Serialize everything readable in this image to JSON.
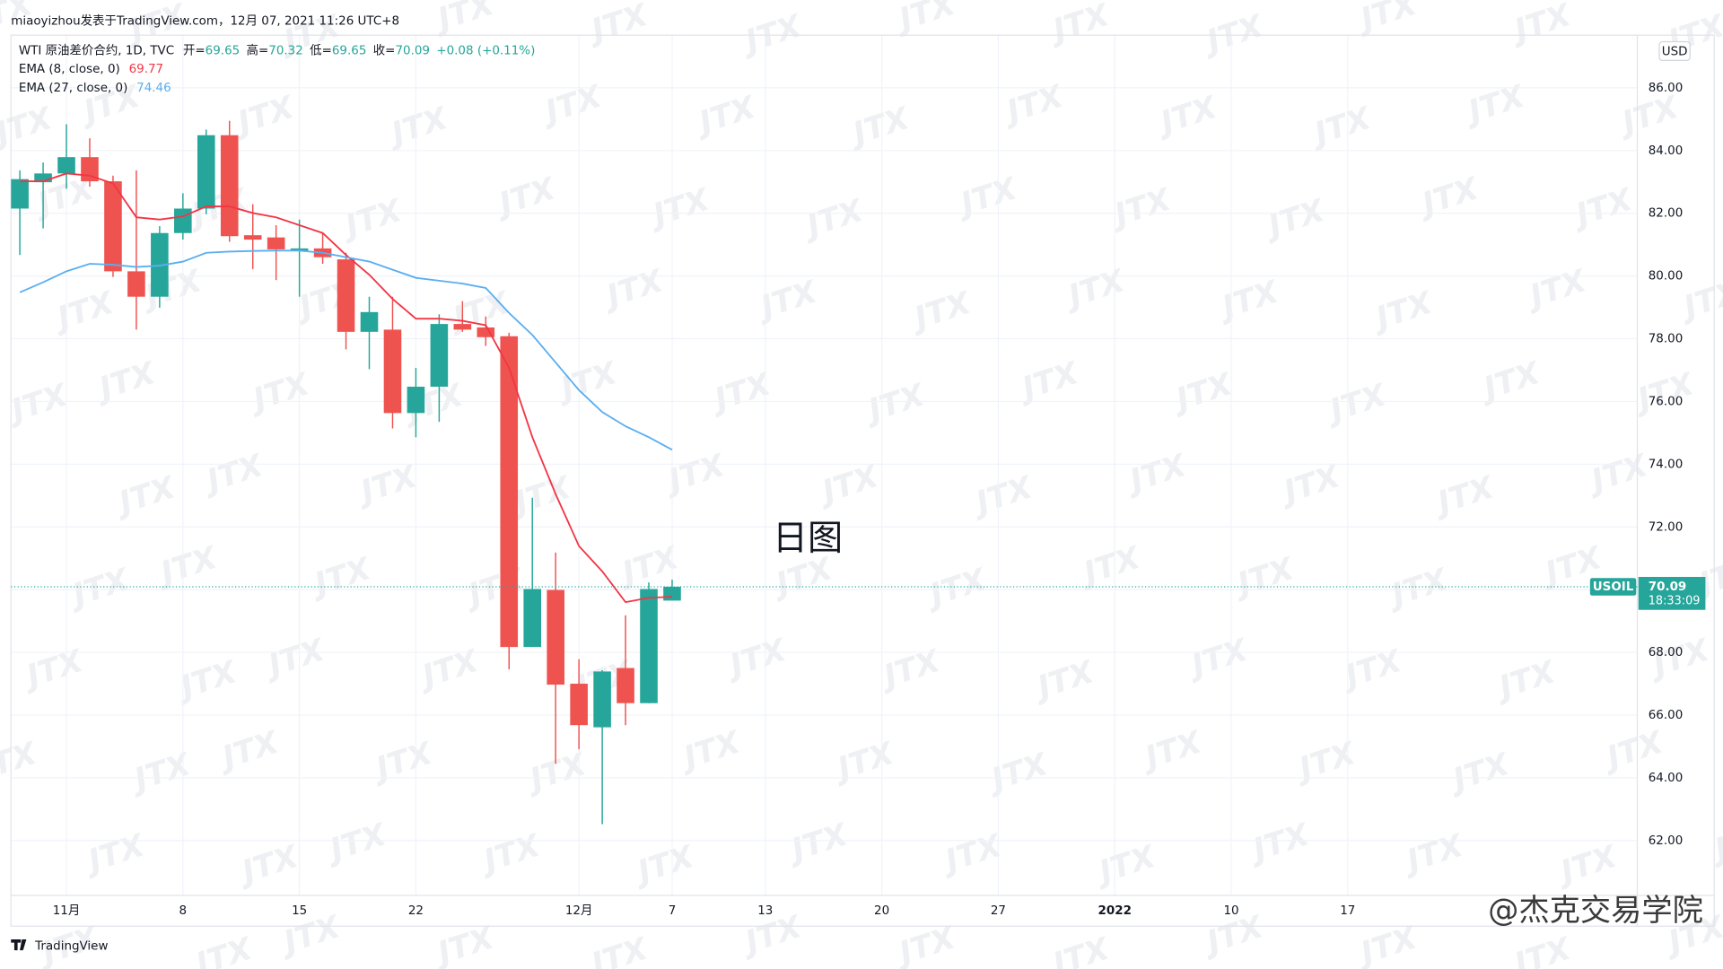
{
  "page_title": "miaoyizhou发表于TradingView.com，12月 07, 2021 11:26 UTC+8",
  "chart_data": {
    "type": "candlestick",
    "symbol_line": "WTI 原油差价合约, 1D, TVC",
    "ohlc_labels": [
      "开=",
      "高=",
      "低=",
      "收="
    ],
    "change": "+0.08 (+0.11%)",
    "currency": "USD",
    "ticker": "USOIL",
    "countdown": "18:33:09",
    "annotation": "日图",
    "watermark": "JTX",
    "credit": "@杰克交易学院",
    "brand": "TradingView",
    "up_color": "#26a69a",
    "down_color": "#ef5350",
    "open": [
      82.15,
      82.99,
      83.27,
      83.79,
      83.02,
      80.15,
      79.34,
      81.37,
      82.15,
      84.49,
      81.3,
      81.23,
      80.81,
      80.88,
      80.53,
      78.22,
      78.29,
      75.63,
      76.47,
      78.47,
      78.36,
      78.08,
      68.17,
      69.99,
      67.0,
      65.61,
      67.5,
      66.38,
      69.65
    ],
    "high": [
      83.37,
      83.62,
      84.84,
      84.39,
      83.2,
      83.37,
      81.59,
      82.64,
      84.67,
      84.95,
      82.29,
      81.62,
      81.8,
      81.37,
      80.74,
      79.34,
      79.34,
      77.07,
      78.78,
      79.2,
      78.71,
      78.19,
      72.93,
      71.18,
      67.78,
      67.43,
      69.18,
      70.23,
      70.32
    ],
    "low": [
      80.67,
      81.52,
      82.78,
      82.85,
      79.97,
      78.29,
      78.99,
      81.16,
      81.97,
      81.09,
      80.22,
      79.87,
      79.34,
      80.39,
      77.66,
      77.03,
      75.14,
      74.86,
      75.35,
      78.22,
      77.77,
      67.46,
      68.17,
      64.45,
      64.91,
      62.52,
      65.68,
      66.38,
      69.65
    ],
    "close": [
      83.09,
      83.27,
      83.79,
      83.02,
      80.15,
      79.34,
      81.37,
      82.15,
      84.49,
      81.27,
      81.16,
      80.85,
      80.88,
      80.6,
      78.22,
      78.85,
      75.63,
      76.47,
      78.47,
      78.29,
      78.05,
      68.17,
      70.02,
      66.97,
      65.68,
      67.39,
      66.38,
      70.02,
      70.09
    ],
    "series": [
      {
        "name": "EMA (8, close, 0)",
        "color": "#f23645",
        "values": [
          83.02,
          83.02,
          83.27,
          83.2,
          82.95,
          81.87,
          81.8,
          81.9,
          82.22,
          82.22,
          82.01,
          81.87,
          81.62,
          81.37,
          80.67,
          80.04,
          79.27,
          78.64,
          78.64,
          78.57,
          78.43,
          77.07,
          74.86,
          73.04,
          71.39,
          70.58,
          69.6,
          69.74,
          69.77
        ]
      },
      {
        "name": "EMA (27, close, 0)",
        "color": "#5aaef0",
        "values": [
          79.48,
          79.8,
          80.15,
          80.39,
          80.36,
          80.29,
          80.33,
          80.46,
          80.74,
          80.78,
          80.8,
          80.81,
          80.81,
          80.74,
          80.6,
          80.46,
          80.2,
          79.94,
          79.85,
          79.76,
          79.62,
          78.82,
          78.12,
          77.24,
          76.36,
          75.66,
          75.21,
          74.86,
          74.46
        ]
      }
    ],
    "xlim": [
      -0.38,
      69.43
    ],
    "xticks": [
      {
        "value": 2,
        "label": "11月"
      },
      {
        "value": 7,
        "label": "8"
      },
      {
        "value": 12,
        "label": "15"
      },
      {
        "value": 17,
        "label": "22"
      },
      {
        "value": 24,
        "label": "12月"
      },
      {
        "value": 28,
        "label": "7"
      },
      {
        "value": 32,
        "label": "13"
      },
      {
        "value": 37,
        "label": "20"
      },
      {
        "value": 42,
        "label": "27"
      },
      {
        "value": 47,
        "label": "2022"
      },
      {
        "value": 52,
        "label": "10"
      },
      {
        "value": 57,
        "label": "17"
      }
    ],
    "ylim": [
      60.25,
      87.68
    ],
    "yticks": [
      {
        "value": 62,
        "label": "62.00"
      },
      {
        "value": 64,
        "label": "64.00"
      },
      {
        "value": 66,
        "label": "66.00"
      },
      {
        "value": 68,
        "label": "68.00"
      },
      {
        "value": 70,
        "label": "70.00"
      },
      {
        "value": 72,
        "label": "72.00"
      },
      {
        "value": 74,
        "label": "74.00"
      },
      {
        "value": 76,
        "label": "76.00"
      },
      {
        "value": 78,
        "label": "78.00"
      },
      {
        "value": 80,
        "label": "80.00"
      },
      {
        "value": 82,
        "label": "82.00"
      },
      {
        "value": 84,
        "label": "84.00"
      },
      {
        "value": 86,
        "label": "86.00"
      }
    ],
    "grid": true
  }
}
